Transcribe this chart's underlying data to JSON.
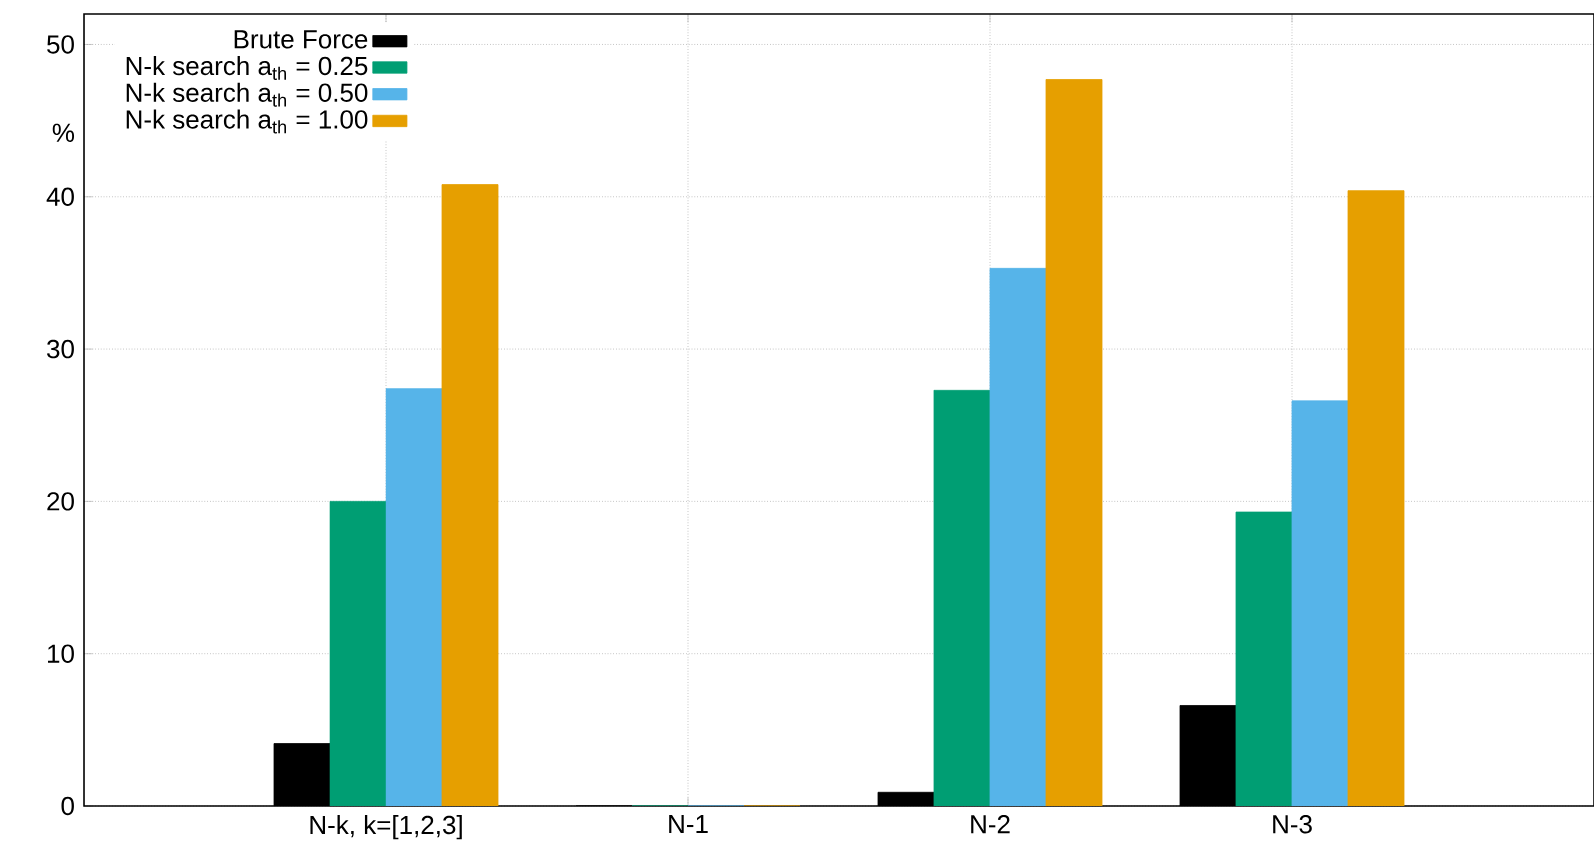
{
  "chart_data": {
    "type": "bar",
    "ylabel": "%",
    "categories": [
      "N-k, k=[1,2,3]",
      "N-1",
      "N-2",
      "N-3"
    ],
    "series": [
      {
        "name": "Brute Force",
        "color": "#000000",
        "values": [
          4.1,
          0,
          0.9,
          6.6
        ]
      },
      {
        "name": "N-k search a$_{th}$ = 0.25",
        "color": "#009e73",
        "values": [
          20.0,
          0,
          27.3,
          19.3
        ]
      },
      {
        "name": "N-k search a$_{th}$ = 0.50",
        "color": "#56b4e9",
        "values": [
          27.4,
          0,
          35.3,
          26.6
        ]
      },
      {
        "name": "N-k search a$_{th}$ = 1.00",
        "color": "#e69f00",
        "values": [
          40.8,
          0,
          47.7,
          40.4
        ]
      }
    ],
    "ylim": [
      0,
      52
    ],
    "yticks": [
      0,
      10,
      20,
      30,
      40,
      50
    ],
    "grid": true,
    "legend": "top left"
  }
}
